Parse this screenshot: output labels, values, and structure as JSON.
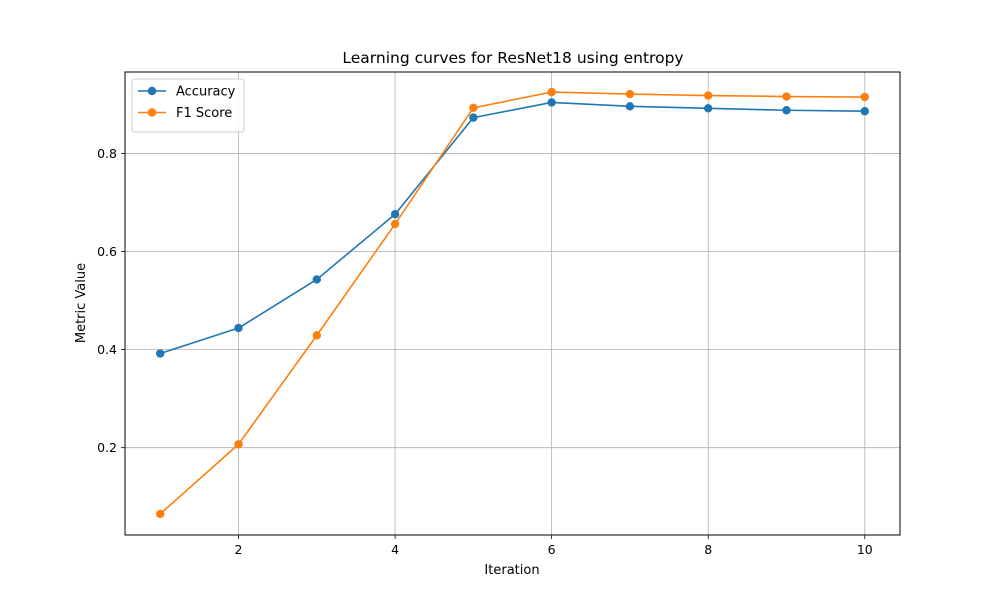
{
  "chart_data": {
    "type": "line",
    "title": "Learning curves for ResNet18 using entropy",
    "xlabel": "Iteration",
    "ylabel": "Metric Value",
    "x": [
      1,
      2,
      3,
      4,
      5,
      6,
      7,
      8,
      9,
      10
    ],
    "xlim": [
      0.55,
      10.45
    ],
    "ylim": [
      0.022,
      0.966
    ],
    "xticks": [
      2,
      4,
      6,
      8,
      10
    ],
    "yticks": [
      0.2,
      0.4,
      0.6,
      0.8
    ],
    "grid": true,
    "legend_position": "top-left",
    "series": [
      {
        "name": "Accuracy",
        "color": "#1f77b4",
        "values": [
          0.392,
          0.444,
          0.543,
          0.676,
          0.873,
          0.904,
          0.896,
          0.892,
          0.888,
          0.886
        ]
      },
      {
        "name": "F1 Score",
        "color": "#ff7f0e",
        "values": [
          0.065,
          0.207,
          0.429,
          0.656,
          0.893,
          0.925,
          0.921,
          0.918,
          0.916,
          0.915
        ]
      }
    ]
  }
}
